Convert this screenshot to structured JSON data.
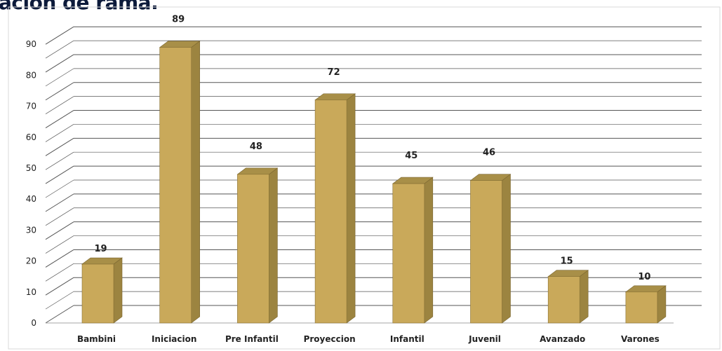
{
  "title": "ación de rama.",
  "chart_data": {
    "type": "bar",
    "categories": [
      "Bambini",
      "Iniciacion",
      "Pre Infantil",
      "Proyeccion",
      "Infantil",
      "Juvenil",
      "Avanzado",
      "Varones"
    ],
    "values": [
      19,
      89,
      48,
      72,
      45,
      46,
      15,
      10
    ],
    "ylim": [
      0,
      90
    ],
    "yticks": [
      "0",
      "10",
      "20",
      "30",
      "40",
      "50",
      "60",
      "70",
      "80",
      "90"
    ],
    "grid": true,
    "bar_color": "#c9a95a"
  }
}
